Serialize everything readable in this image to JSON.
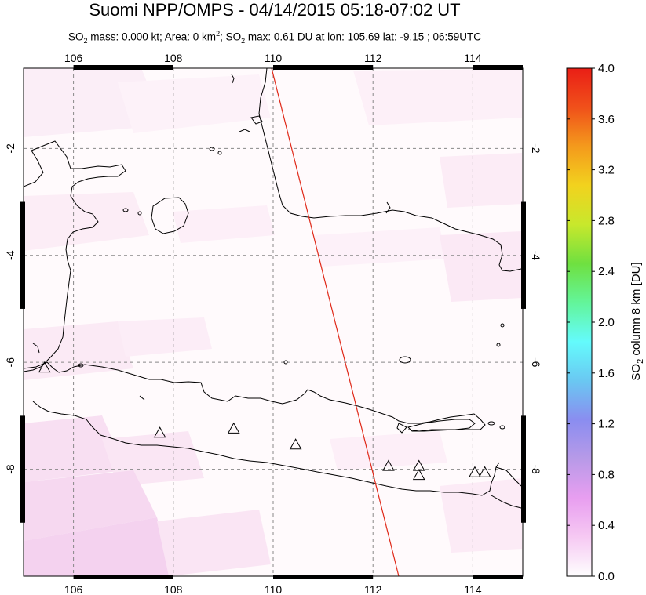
{
  "title": "Suomi NPP/OMPS - 04/14/2015 05:18-07:02 UT",
  "subtitle_parts": {
    "p1": "SO",
    "p1_sub": "2",
    "p2": " mass: 0.000 kt; Area: 0 km",
    "p2_sup": "2",
    "p3": "; SO",
    "p3_sub": "2",
    "p4": " max: 0.61 DU at lon: 105.69 lat: -9.15 ; 06:59UTC"
  },
  "map": {
    "lon_range": [
      105,
      115
    ],
    "lat_range": [
      -10,
      -0.5
    ],
    "lon_ticks": [
      "106",
      "108",
      "110",
      "112",
      "114"
    ],
    "lat_ticks": [
      "-2",
      "-4",
      "-6",
      "-8"
    ],
    "volcanoes": [
      {
        "lon": 105.42,
        "lat": -6.1
      },
      {
        "lon": 107.73,
        "lat": -7.32
      },
      {
        "lon": 109.21,
        "lat": -7.24
      },
      {
        "lon": 110.45,
        "lat": -7.54
      },
      {
        "lon": 112.31,
        "lat": -7.94
      },
      {
        "lon": 112.92,
        "lat": -7.94
      },
      {
        "lon": 112.92,
        "lat": -8.11
      },
      {
        "lon": 114.04,
        "lat": -8.06
      },
      {
        "lon": 114.24,
        "lat": -8.06
      }
    ]
  },
  "colorbar": {
    "label_main": "SO",
    "label_sub": "2",
    "label_rest": " column 8 km [DU]",
    "ticks": [
      "4.0",
      "3.6",
      "3.2",
      "2.8",
      "2.4",
      "2.0",
      "1.6",
      "1.2",
      "0.8",
      "0.4",
      "0.0"
    ],
    "colors": [
      "#fefefe",
      "#f6c9f3",
      "#e89ef0",
      "#b89ae8",
      "#8a8df0",
      "#6ac8f2",
      "#64fbfc",
      "#63f59a",
      "#6fe040",
      "#c8e82c",
      "#f2d21e",
      "#f49a1c",
      "#f0501a",
      "#ea1e16"
    ]
  },
  "colors": {
    "track": "#e02a1a",
    "coast": "#000000",
    "grid": "#888888"
  }
}
